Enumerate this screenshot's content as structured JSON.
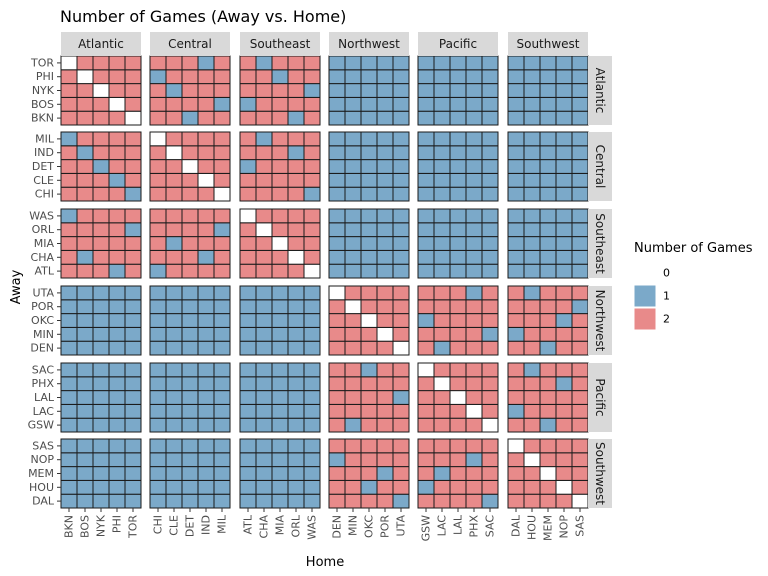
{
  "chart_data": {
    "type": "heatmap",
    "title": "Number of Games (Away vs. Home)",
    "xlabel": "Home",
    "ylabel": "Away",
    "facet_cols": [
      "Atlantic",
      "Central",
      "Southeast",
      "Northwest",
      "Pacific",
      "Southwest"
    ],
    "facet_rows": [
      "Atlantic",
      "Central",
      "Southeast",
      "Northwest",
      "Pacific",
      "Southwest"
    ],
    "teams": {
      "Atlantic": [
        "BKN",
        "BOS",
        "NYK",
        "PHI",
        "TOR"
      ],
      "Central": [
        "CHI",
        "CLE",
        "DET",
        "IND",
        "MIL"
      ],
      "Southeast": [
        "ATL",
        "CHA",
        "MIA",
        "ORL",
        "WAS"
      ],
      "Northwest": [
        "DEN",
        "MIN",
        "OKC",
        "POR",
        "UTA"
      ],
      "Pacific": [
        "GSW",
        "LAC",
        "LAL",
        "PHX",
        "SAC"
      ],
      "Southwest": [
        "DAL",
        "HOU",
        "MEM",
        "NOP",
        "SAS"
      ]
    },
    "legend": {
      "title": "Number of Games",
      "placement": "right",
      "levels": [
        {
          "label": "0",
          "color": "#ffffff"
        },
        {
          "label": "1",
          "color": "#7ba9c9"
        },
        {
          "label": "2",
          "color": "#e88a8a"
        }
      ]
    },
    "values": {
      "Atlantic": {
        "Atlantic": [
          [
            2,
            2,
            2,
            2,
            0
          ],
          [
            2,
            2,
            2,
            0,
            2
          ],
          [
            2,
            2,
            0,
            2,
            2
          ],
          [
            2,
            0,
            2,
            2,
            2
          ],
          [
            0,
            2,
            2,
            2,
            2
          ]
        ],
        "Central": [
          [
            2,
            2,
            1,
            2,
            2
          ],
          [
            2,
            2,
            2,
            2,
            1
          ],
          [
            2,
            1,
            2,
            2,
            2
          ],
          [
            1,
            2,
            2,
            2,
            2
          ],
          [
            2,
            2,
            2,
            1,
            2
          ]
        ],
        "Southeast": [
          [
            2,
            2,
            2,
            1,
            2
          ],
          [
            1,
            2,
            2,
            2,
            2
          ],
          [
            2,
            2,
            2,
            2,
            1
          ],
          [
            2,
            2,
            1,
            2,
            2
          ],
          [
            2,
            1,
            2,
            2,
            2
          ]
        ]
      },
      "Central": {
        "Atlantic": [
          [
            2,
            2,
            2,
            2,
            1
          ],
          [
            2,
            2,
            2,
            1,
            2
          ],
          [
            2,
            2,
            1,
            2,
            2
          ],
          [
            2,
            1,
            2,
            2,
            2
          ],
          [
            1,
            2,
            2,
            2,
            2
          ]
        ],
        "Central": [
          [
            2,
            2,
            2,
            2,
            0
          ],
          [
            2,
            2,
            2,
            0,
            2
          ],
          [
            2,
            2,
            0,
            2,
            2
          ],
          [
            2,
            0,
            2,
            2,
            2
          ],
          [
            0,
            2,
            2,
            2,
            2
          ]
        ],
        "Southeast": [
          [
            2,
            2,
            2,
            2,
            1
          ],
          [
            2,
            2,
            2,
            2,
            2
          ],
          [
            1,
            2,
            2,
            2,
            2
          ],
          [
            2,
            2,
            2,
            1,
            2
          ],
          [
            2,
            1,
            2,
            2,
            2
          ]
        ]
      },
      "Southeast": {
        "Atlantic": [
          [
            2,
            2,
            2,
            1,
            2
          ],
          [
            2,
            1,
            2,
            2,
            2
          ],
          [
            2,
            2,
            2,
            2,
            2
          ],
          [
            2,
            2,
            2,
            2,
            1
          ],
          [
            1,
            2,
            2,
            2,
            2
          ]
        ],
        "Central": [
          [
            1,
            2,
            2,
            2,
            2
          ],
          [
            2,
            2,
            2,
            1,
            2
          ],
          [
            2,
            1,
            2,
            2,
            2
          ],
          [
            2,
            2,
            2,
            2,
            1
          ],
          [
            2,
            2,
            2,
            2,
            2
          ]
        ],
        "Southeast": [
          [
            2,
            2,
            2,
            2,
            0
          ],
          [
            2,
            2,
            2,
            0,
            2
          ],
          [
            2,
            2,
            0,
            2,
            2
          ],
          [
            2,
            0,
            2,
            2,
            2
          ],
          [
            0,
            2,
            2,
            2,
            2
          ]
        ]
      },
      "Northwest": {
        "Northwest": [
          [
            2,
            2,
            2,
            2,
            0
          ],
          [
            2,
            2,
            2,
            0,
            2
          ],
          [
            2,
            2,
            0,
            2,
            2
          ],
          [
            2,
            0,
            2,
            2,
            2
          ],
          [
            0,
            2,
            2,
            2,
            2
          ]
        ],
        "Pacific": [
          [
            2,
            1,
            2,
            2,
            2
          ],
          [
            2,
            2,
            2,
            2,
            1
          ],
          [
            1,
            2,
            2,
            2,
            2
          ],
          [
            2,
            2,
            2,
            2,
            2
          ],
          [
            2,
            2,
            2,
            1,
            2
          ]
        ],
        "Southwest": [
          [
            2,
            2,
            1,
            2,
            2
          ],
          [
            1,
            2,
            2,
            2,
            2
          ],
          [
            2,
            2,
            2,
            1,
            2
          ],
          [
            2,
            2,
            2,
            2,
            1
          ],
          [
            2,
            1,
            2,
            2,
            2
          ]
        ]
      },
      "Pacific": {
        "Northwest": [
          [
            2,
            1,
            2,
            2,
            2
          ],
          [
            2,
            2,
            2,
            2,
            2
          ],
          [
            2,
            2,
            2,
            2,
            1
          ],
          [
            2,
            2,
            2,
            2,
            2
          ],
          [
            2,
            2,
            1,
            2,
            2
          ]
        ],
        "Pacific": [
          [
            2,
            2,
            2,
            2,
            0
          ],
          [
            2,
            2,
            2,
            0,
            2
          ],
          [
            2,
            2,
            0,
            2,
            2
          ],
          [
            2,
            0,
            2,
            2,
            2
          ],
          [
            0,
            2,
            2,
            2,
            2
          ]
        ],
        "Southwest": [
          [
            2,
            2,
            1,
            2,
            2
          ],
          [
            1,
            2,
            2,
            2,
            2
          ],
          [
            2,
            2,
            2,
            2,
            2
          ],
          [
            2,
            2,
            2,
            1,
            2
          ],
          [
            2,
            1,
            2,
            2,
            2
          ]
        ]
      },
      "Southwest": {
        "Northwest": [
          [
            2,
            2,
            2,
            2,
            1
          ],
          [
            2,
            2,
            1,
            2,
            2
          ],
          [
            2,
            2,
            2,
            1,
            2
          ],
          [
            1,
            2,
            2,
            2,
            2
          ],
          [
            2,
            2,
            2,
            2,
            2
          ]
        ],
        "Pacific": [
          [
            2,
            2,
            2,
            2,
            1
          ],
          [
            1,
            2,
            2,
            2,
            2
          ],
          [
            2,
            1,
            2,
            2,
            2
          ],
          [
            2,
            2,
            2,
            1,
            2
          ],
          [
            2,
            2,
            2,
            2,
            2
          ]
        ],
        "Southwest": [
          [
            2,
            2,
            2,
            2,
            0
          ],
          [
            2,
            2,
            2,
            0,
            2
          ],
          [
            2,
            2,
            0,
            2,
            2
          ],
          [
            2,
            0,
            2,
            2,
            2
          ],
          [
            0,
            2,
            2,
            2,
            2
          ]
        ]
      }
    },
    "default_value": 1
  }
}
